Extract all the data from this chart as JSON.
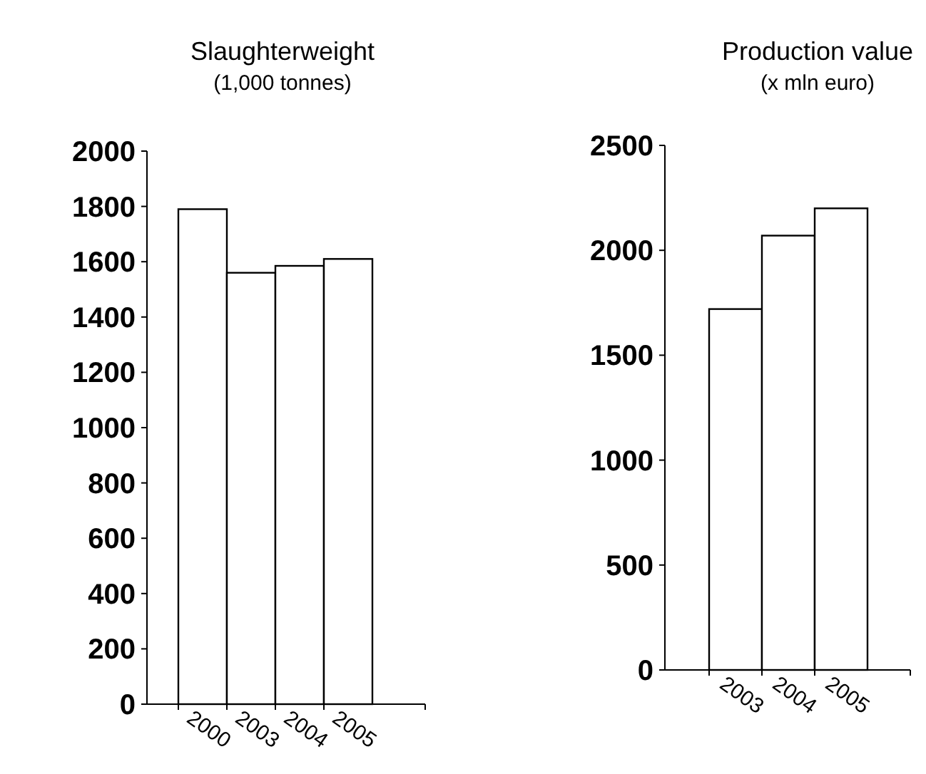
{
  "chart_data": [
    {
      "type": "bar",
      "title": "Slaughterweight",
      "subtitle": "(1,000 tonnes)",
      "categories": [
        "2000",
        "2003",
        "2004",
        "2005"
      ],
      "values": [
        1790,
        1560,
        1585,
        1610
      ],
      "color": "#ffffff",
      "ylim": [
        0,
        2000
      ],
      "yticks": [
        0,
        200,
        400,
        600,
        800,
        1000,
        1200,
        1400,
        1600,
        1800,
        2000
      ],
      "grid": false
    },
    {
      "type": "bar",
      "title": "Production value",
      "subtitle": "(x mln euro)",
      "categories": [
        "2003",
        "2004",
        "2005"
      ],
      "values": [
        1720,
        2070,
        2200
      ],
      "color": "#ffffff",
      "ylim": [
        0,
        2500
      ],
      "yticks": [
        0,
        500,
        1000,
        1500,
        2000,
        2500
      ],
      "grid": false
    }
  ]
}
